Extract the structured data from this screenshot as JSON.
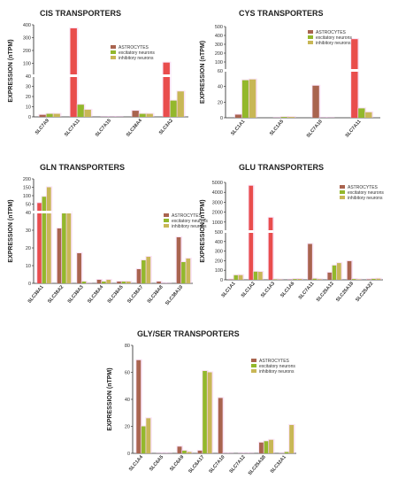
{
  "colors": {
    "astrocytes": "#a9644f",
    "excitatory": "#93b82c",
    "inhibitory": "#c8b756",
    "highlight": "#e94d4d",
    "halo": "#f3c2ea"
  },
  "legend_labels": [
    "ASTROCYTES",
    "excitatory neurons",
    "inhibitory neurons"
  ],
  "chart_data": [
    {
      "type": "bar",
      "title": "CIS TRANSPORTERS",
      "ylabel": "EXPRESSION (nTPM)",
      "categories": [
        "SLC7A9",
        "SLC7A11",
        "SLC7A15",
        "SLC38A4",
        "SLC3A2"
      ],
      "break": {
        "lower": [
          0,
          40
        ],
        "upper": [
          40,
          400
        ]
      },
      "lower_ticks": [
        "0",
        "10",
        "20",
        "30",
        "40"
      ],
      "upper_ticks": [
        "100",
        "200",
        "300",
        "400"
      ],
      "legend_position": "upper-middle",
      "series": [
        {
          "name": "ASTROCYTES",
          "values": [
            2,
            375,
            0,
            6,
            135
          ]
        },
        {
          "name": "excitatory neurons",
          "values": [
            3,
            12,
            0,
            3,
            16
          ]
        },
        {
          "name": "inhibitory neurons",
          "values": [
            3,
            7,
            0,
            3,
            25
          ]
        }
      ]
    },
    {
      "type": "bar",
      "title": "CYS TRANSPORTERS",
      "ylabel": "EXPRESSION (nTPM)",
      "categories": [
        "SLC1A1",
        "SLC1A5",
        "SLC7A10",
        "SLC7A11"
      ],
      "break": {
        "lower": [
          0,
          60
        ],
        "upper": [
          60,
          500
        ]
      },
      "lower_ticks": [
        "0",
        "20",
        "40",
        "60"
      ],
      "upper_ticks": [
        "100",
        "200",
        "300",
        "400",
        "500"
      ],
      "legend_position": "top-right",
      "series": [
        {
          "name": "ASTROCYTES",
          "values": [
            4,
            0,
            41,
            375
          ]
        },
        {
          "name": "excitatory neurons",
          "values": [
            48,
            1,
            0,
            12
          ]
        },
        {
          "name": "inhibitory neurons",
          "values": [
            49,
            1,
            0,
            7
          ]
        }
      ]
    },
    {
      "type": "bar",
      "title": "GLN TRANSPORTERS",
      "ylabel": "EXPRESSION (nTPM)",
      "categories": [
        "SLC38A1",
        "SLC38A2",
        "SLC38A3",
        "SLC38A4",
        "SLC38A5",
        "SLC38A7",
        "SLC38A8",
        "SLC38A10"
      ],
      "break": {
        "lower": [
          0,
          40
        ],
        "upper": [
          40,
          200
        ]
      },
      "lower_ticks": [
        "0",
        "10",
        "20",
        "30",
        "40"
      ],
      "upper_ticks": [
        "50",
        "100",
        "150",
        "200"
      ],
      "legend_position": "middle-right",
      "series": [
        {
          "name": "ASTROCYTES",
          "values": [
            85,
            31,
            17,
            2,
            1,
            8,
            1,
            26
          ]
        },
        {
          "name": "excitatory neurons",
          "values": [
            115,
            44,
            1,
            1,
            1,
            13,
            0,
            12
          ]
        },
        {
          "name": "inhibitory neurons",
          "values": [
            160,
            44,
            0,
            2,
            1,
            15,
            0,
            14
          ]
        }
      ]
    },
    {
      "type": "bar",
      "title": "GLU TRANSPORTERS",
      "ylabel": "EXPRESSION (nTPM)",
      "categories": [
        "SLC1A1",
        "SLC1A2",
        "SLC1A3",
        "SLC1A6",
        "SLC7A11",
        "SLC25A12",
        "SLC25A18",
        "SLC25A22"
      ],
      "break": {
        "lower": [
          0,
          500
        ],
        "upper": [
          500,
          5000
        ]
      },
      "lower_ticks": [
        "0",
        "100",
        "200",
        "300",
        "400",
        "500"
      ],
      "upper_ticks": [
        "1000",
        "2000",
        "3000",
        "4000",
        "5000"
      ],
      "legend_position": "top-right",
      "series": [
        {
          "name": "ASTROCYTES",
          "values": [
            4,
            4700,
            1800,
            2,
            375,
            75,
            195,
            5
          ]
        },
        {
          "name": "excitatory neurons",
          "values": [
            48,
            85,
            5,
            8,
            12,
            150,
            8,
            10
          ]
        },
        {
          "name": "inhibitory neurons",
          "values": [
            49,
            83,
            3,
            9,
            7,
            175,
            5,
            12
          ]
        }
      ]
    },
    {
      "type": "bar",
      "title": "GLY/SER TRANSPORTERS",
      "ylabel": "EXPRESSION (nTPM)",
      "categories": [
        "SLC1A4",
        "SLC6A5",
        "SLC6A9",
        "SLC6A17",
        "SLC7A10",
        "SLC7A12",
        "SLC25A38",
        "SLC32A1"
      ],
      "ylim": [
        0,
        80
      ],
      "ticks": [
        "0",
        "20",
        "40",
        "60",
        "80"
      ],
      "legend_position": "top-right",
      "series": [
        {
          "name": "ASTROCYTES",
          "values": [
            69,
            0,
            5,
            2,
            41,
            0,
            8,
            0
          ]
        },
        {
          "name": "excitatory neurons",
          "values": [
            20,
            0,
            2,
            61,
            0,
            0,
            9,
            1
          ]
        },
        {
          "name": "inhibitory neurons",
          "values": [
            26,
            0,
            1,
            60,
            0,
            0,
            10,
            21
          ]
        }
      ]
    }
  ]
}
